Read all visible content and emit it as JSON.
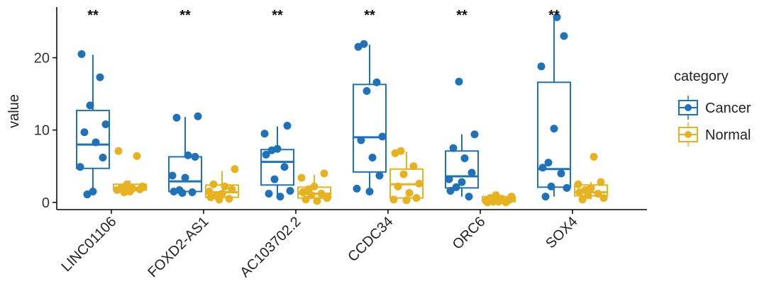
{
  "chart_data": {
    "type": "box",
    "xlabel": "",
    "ylabel": "value",
    "yticks": [
      0,
      10,
      20
    ],
    "ylim": [
      -1,
      27
    ],
    "grid": false,
    "legend": {
      "title": "category",
      "position": "right",
      "entries": [
        "Cancer",
        "Normal"
      ]
    },
    "colors": {
      "Cancer": "#1f72b8",
      "Normal": "#e6b21f"
    },
    "categories": [
      "LINC01106",
      "FOXD2-AS1",
      "AC103702.2",
      "CCDC34",
      "ORC6",
      "SOX4"
    ],
    "significance": [
      "**",
      "**",
      "**",
      "**",
      "**",
      "**"
    ],
    "series": [
      {
        "name": "Cancer",
        "boxes": [
          {
            "min": 1.2,
            "q1": 4.7,
            "median": 8.0,
            "q3": 12.7,
            "max": 20.4
          },
          {
            "min": 1.3,
            "q1": 1.5,
            "median": 2.9,
            "q3": 6.3,
            "max": 11.8
          },
          {
            "min": 0.9,
            "q1": 2.4,
            "median": 5.6,
            "q3": 7.3,
            "max": 10.5
          },
          {
            "min": 1.6,
            "q1": 4.2,
            "median": 9.0,
            "q3": 16.3,
            "max": 21.8
          },
          {
            "min": 0.8,
            "q1": 2.0,
            "median": 3.6,
            "q3": 7.1,
            "max": 9.4
          },
          {
            "min": 0.8,
            "q1": 2.1,
            "median": 4.6,
            "q3": 16.6,
            "max": 25.6
          }
        ],
        "points": [
          [
            20.5,
            17.3,
            13.4,
            10.8,
            9.7,
            8.3,
            6.2,
            4.9,
            1.5,
            1.1
          ],
          [
            11.9,
            11.7,
            6.5,
            6.3,
            3.7,
            3.4,
            1.7,
            1.5,
            1.4,
            1.3
          ],
          [
            10.6,
            9.5,
            7.4,
            7.2,
            6.6,
            4.9,
            3.2,
            1.6,
            1.2,
            0.8
          ],
          [
            21.9,
            21.5,
            16.6,
            15.4,
            9.1,
            8.6,
            6.2,
            3.7,
            1.9,
            1.5
          ],
          [
            16.7,
            9.4,
            7.5,
            6.1,
            4.1,
            3.2,
            2.8,
            2.1,
            1.6,
            0.8
          ],
          [
            25.6,
            23.0,
            18.8,
            10.2,
            5.5,
            4.8,
            4.0,
            2.2,
            2.0,
            0.8
          ]
        ]
      },
      {
        "name": "Normal",
        "boxes": [
          {
            "min": 1.5,
            "q1": 1.7,
            "median": 2.0,
            "q3": 2.5,
            "max": 3.0
          },
          {
            "min": 0.3,
            "q1": 0.7,
            "median": 1.4,
            "q3": 2.4,
            "max": 4.3
          },
          {
            "min": 0.2,
            "q1": 0.6,
            "median": 1.2,
            "q3": 2.1,
            "max": 3.8
          },
          {
            "min": 0.3,
            "q1": 0.6,
            "median": 2.5,
            "q3": 4.6,
            "max": 7.0
          },
          {
            "min": 0.0,
            "q1": 0.1,
            "median": 0.3,
            "q3": 0.8,
            "max": 1.0
          },
          {
            "min": 0.4,
            "q1": 0.9,
            "median": 1.4,
            "q3": 2.4,
            "max": 2.8
          }
        ],
        "points": [
          [
            7.1,
            6.4,
            2.5,
            2.2,
            2.0,
            1.9,
            1.8,
            1.7,
            1.5,
            1.4
          ],
          [
            4.6,
            2.5,
            2.2,
            1.8,
            1.5,
            1.2,
            0.9,
            0.7,
            0.5,
            0.4
          ],
          [
            4.0,
            3.4,
            2.2,
            1.8,
            1.4,
            1.2,
            1.0,
            0.6,
            0.4,
            0.2
          ],
          [
            7.1,
            6.8,
            5.0,
            3.9,
            2.6,
            2.2,
            1.3,
            0.6,
            0.4,
            0.3
          ],
          [
            1.0,
            0.8,
            0.6,
            0.5,
            0.3,
            0.2,
            0.1,
            0.1,
            0.0,
            0.0
          ],
          [
            6.3,
            2.8,
            2.5,
            2.0,
            1.7,
            1.4,
            1.2,
            1.0,
            0.6,
            0.4
          ]
        ]
      }
    ]
  }
}
